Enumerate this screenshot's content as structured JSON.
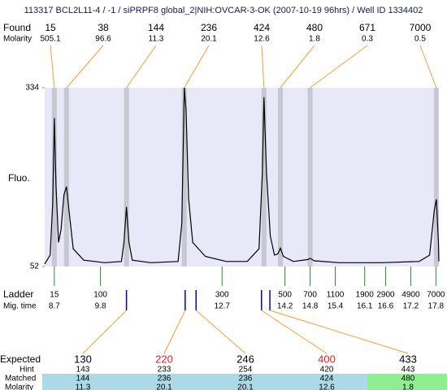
{
  "header": {
    "title": "113317  BCL2L11-4 / -1 / siPRPF8 global_2|NIH:OVCAR-3-OK (2007-10-19 96hrs) / Well ID 1334402"
  },
  "found": {
    "label": "Found",
    "molarity_label": "Molarity",
    "peaks": [
      {
        "size": 15,
        "molarity": 505.1,
        "time": 8.7
      },
      {
        "size": 38,
        "molarity": 96.6,
        "time": 8.99
      },
      {
        "size": 144,
        "molarity": 11.3,
        "time": 10.42
      },
      {
        "size": 236,
        "molarity": 20.1,
        "time": 11.8
      },
      {
        "size": 424,
        "molarity": 12.6,
        "time": 13.7
      },
      {
        "size": 480,
        "molarity": 1.8,
        "time": 14.09
      },
      {
        "size": 671,
        "molarity": 0.3,
        "time": 14.8
      },
      {
        "size": 7000,
        "molarity": 0.5,
        "time": 17.81
      }
    ]
  },
  "plot": {
    "y_label": "Fluo.",
    "ylim": [
      52,
      334
    ],
    "yticks": [
      52,
      334
    ],
    "xlim": [
      8.47,
      17.87
    ],
    "trace": {
      "time": [
        8.47,
        8.6,
        8.66,
        8.7,
        8.74,
        8.8,
        8.86,
        8.93,
        8.99,
        9.05,
        9.15,
        9.4,
        9.9,
        10.3,
        10.36,
        10.42,
        10.48,
        10.56,
        11.0,
        11.65,
        11.74,
        11.8,
        11.84,
        11.9,
        12.0,
        12.3,
        12.8,
        13.3,
        13.58,
        13.66,
        13.7,
        13.76,
        13.85,
        13.95,
        14.03,
        14.09,
        14.16,
        14.4,
        14.75,
        14.8,
        14.9,
        15.5,
        16.5,
        17.4,
        17.65,
        17.76,
        17.81,
        17.86,
        17.87
      ],
      "fluo": [
        56,
        70,
        150,
        286,
        180,
        90,
        110,
        165,
        178,
        140,
        80,
        62,
        58,
        60,
        90,
        146,
        90,
        62,
        58,
        60,
        120,
        334,
        300,
        160,
        90,
        68,
        60,
        60,
        80,
        200,
        319,
        200,
        100,
        70,
        72,
        81,
        68,
        60,
        63,
        65,
        61,
        58,
        58,
        60,
        70,
        140,
        158,
        90,
        60
      ]
    }
  },
  "ladder": {
    "label": "Ladder",
    "time_label": "Mig. time",
    "sizes": [
      15,
      100,
      300,
      500,
      700,
      1100,
      1900,
      2900,
      4900,
      7000
    ],
    "times": [
      8.7,
      9.8,
      12.7,
      14.2,
      14.8,
      15.4,
      16.1,
      16.6,
      17.2,
      17.8
    ]
  },
  "expected": {
    "label": "Expected",
    "hint_label": "Hint",
    "matched_label": "Matched",
    "molarity_label": "Molarity",
    "items": [
      {
        "size": 130,
        "color": "#000000",
        "time": 10.42,
        "hint": 143,
        "matched": 144,
        "molarity": 11.3,
        "row_color": "#add8e6"
      },
      {
        "size": 220,
        "color": "#e02020",
        "time": 11.82,
        "hint": 233,
        "matched": 236,
        "molarity": 20.1,
        "row_color": "#add8e6"
      },
      {
        "size": 246,
        "color": "#000000",
        "time": 12.08,
        "hint": 254,
        "matched": 236,
        "molarity": 20.1,
        "row_color": "#add8e6"
      },
      {
        "size": 400,
        "color": "#e02020",
        "time": 13.64,
        "hint": 420,
        "matched": 424,
        "molarity": 12.6,
        "row_color": "#add8e6"
      },
      {
        "size": 433,
        "color": "#000000",
        "time": 13.84,
        "hint": 443,
        "matched": 480,
        "molarity": 1.8,
        "row_color": "#90ee90"
      }
    ]
  }
}
